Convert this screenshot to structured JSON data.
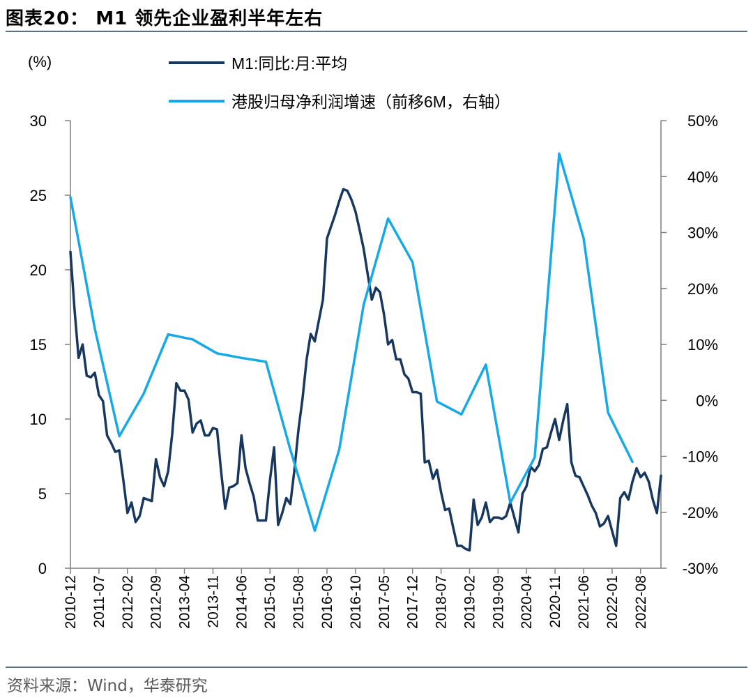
{
  "title": "图表20： M1 领先企业盈利半年左右",
  "source": "资料来源：Wind，华泰研究",
  "chart_data": {
    "type": "line",
    "left_axis_unit_label": "(%)",
    "left_axis": {
      "min": 0,
      "max": 30,
      "ticks": [
        0,
        5,
        10,
        15,
        20,
        25,
        30
      ]
    },
    "right_axis": {
      "min": -30,
      "max": 50,
      "ticks": [
        -30,
        -20,
        -10,
        0,
        10,
        20,
        30,
        40,
        50
      ],
      "tick_suffix": "%"
    },
    "x_axis": {
      "start": "2010-12",
      "end": "2022-12",
      "tick_labels": [
        "2010-12",
        "2011-07",
        "2012-02",
        "2012-09",
        "2013-04",
        "2013-11",
        "2014-06",
        "2015-01",
        "2015-08",
        "2016-03",
        "2016-10",
        "2017-05",
        "2017-12",
        "2018-07",
        "2019-02",
        "2019-09",
        "2020-04",
        "2020-11",
        "2021-06",
        "2022-01",
        "2022-08"
      ]
    },
    "legend_position": "top",
    "series": [
      {
        "name": "M1:同比:月:平均",
        "axis": "left",
        "color": "#17375e",
        "points": [
          [
            "2010-12",
            21.2
          ],
          [
            "2011-01",
            17.4
          ],
          [
            "2011-02",
            14.1
          ],
          [
            "2011-03",
            15.0
          ],
          [
            "2011-04",
            12.9
          ],
          [
            "2011-05",
            12.8
          ],
          [
            "2011-06",
            13.1
          ],
          [
            "2011-07",
            11.6
          ],
          [
            "2011-08",
            11.2
          ],
          [
            "2011-09",
            8.9
          ],
          [
            "2011-10",
            8.4
          ],
          [
            "2011-11",
            7.8
          ],
          [
            "2011-12",
            7.9
          ],
          [
            "2012-01",
            5.9
          ],
          [
            "2012-02",
            3.7
          ],
          [
            "2012-03",
            4.4
          ],
          [
            "2012-04",
            3.1
          ],
          [
            "2012-05",
            3.5
          ],
          [
            "2012-06",
            4.7
          ],
          [
            "2012-07",
            4.6
          ],
          [
            "2012-08",
            4.5
          ],
          [
            "2012-09",
            7.3
          ],
          [
            "2012-10",
            6.1
          ],
          [
            "2012-11",
            5.5
          ],
          [
            "2012-12",
            6.5
          ],
          [
            "2013-01",
            9.0
          ],
          [
            "2013-02",
            12.4
          ],
          [
            "2013-03",
            11.9
          ],
          [
            "2013-04",
            11.9
          ],
          [
            "2013-05",
            11.3
          ],
          [
            "2013-06",
            9.1
          ],
          [
            "2013-07",
            9.7
          ],
          [
            "2013-08",
            9.9
          ],
          [
            "2013-09",
            8.9
          ],
          [
            "2013-10",
            8.9
          ],
          [
            "2013-11",
            9.4
          ],
          [
            "2013-12",
            9.3
          ],
          [
            "2014-01",
            6.5
          ],
          [
            "2014-02",
            4.0
          ],
          [
            "2014-03",
            5.4
          ],
          [
            "2014-04",
            5.5
          ],
          [
            "2014-05",
            5.7
          ],
          [
            "2014-06",
            8.9
          ],
          [
            "2014-07",
            6.7
          ],
          [
            "2014-08",
            5.7
          ],
          [
            "2014-09",
            4.8
          ],
          [
            "2014-10",
            3.2
          ],
          [
            "2014-11",
            3.2
          ],
          [
            "2014-12",
            3.2
          ],
          [
            "2015-01",
            5.9
          ],
          [
            "2015-02",
            8.1
          ],
          [
            "2015-03",
            2.9
          ],
          [
            "2015-04",
            3.7
          ],
          [
            "2015-05",
            4.7
          ],
          [
            "2015-06",
            4.3
          ],
          [
            "2015-07",
            6.6
          ],
          [
            "2015-08",
            9.3
          ],
          [
            "2015-09",
            11.4
          ],
          [
            "2015-10",
            14.0
          ],
          [
            "2015-11",
            15.7
          ],
          [
            "2015-12",
            15.2
          ],
          [
            "2016-01",
            16.6
          ],
          [
            "2016-02",
            18.0
          ],
          [
            "2016-03",
            22.1
          ],
          [
            "2016-04",
            22.9
          ],
          [
            "2016-05",
            23.7
          ],
          [
            "2016-06",
            24.6
          ],
          [
            "2016-07",
            25.4
          ],
          [
            "2016-08",
            25.3
          ],
          [
            "2016-09",
            24.7
          ],
          [
            "2016-10",
            23.9
          ],
          [
            "2016-11",
            22.7
          ],
          [
            "2016-12",
            21.4
          ],
          [
            "2017-01",
            19.7
          ],
          [
            "2017-02",
            18.0
          ],
          [
            "2017-03",
            18.8
          ],
          [
            "2017-04",
            18.5
          ],
          [
            "2017-05",
            17.0
          ],
          [
            "2017-06",
            15.0
          ],
          [
            "2017-07",
            15.3
          ],
          [
            "2017-08",
            14.0
          ],
          [
            "2017-09",
            14.0
          ],
          [
            "2017-10",
            13.0
          ],
          [
            "2017-11",
            12.7
          ],
          [
            "2017-12",
            11.8
          ],
          [
            "2018-01",
            11.8
          ],
          [
            "2018-02",
            11.7
          ],
          [
            "2018-03",
            7.1
          ],
          [
            "2018-04",
            7.2
          ],
          [
            "2018-05",
            6.0
          ],
          [
            "2018-06",
            6.6
          ],
          [
            "2018-07",
            5.1
          ],
          [
            "2018-08",
            3.9
          ],
          [
            "2018-09",
            4.0
          ],
          [
            "2018-10",
            2.7
          ],
          [
            "2018-11",
            1.5
          ],
          [
            "2018-12",
            1.5
          ],
          [
            "2019-01",
            1.3
          ],
          [
            "2019-02",
            1.2
          ],
          [
            "2019-03",
            4.6
          ],
          [
            "2019-04",
            2.9
          ],
          [
            "2019-05",
            3.4
          ],
          [
            "2019-06",
            4.4
          ],
          [
            "2019-07",
            3.1
          ],
          [
            "2019-08",
            3.4
          ],
          [
            "2019-09",
            3.4
          ],
          [
            "2019-10",
            3.3
          ],
          [
            "2019-11",
            3.5
          ],
          [
            "2019-12",
            4.4
          ],
          [
            "2020-01",
            3.4
          ],
          [
            "2020-02",
            2.4
          ],
          [
            "2020-03",
            5.0
          ],
          [
            "2020-04",
            5.5
          ],
          [
            "2020-05",
            6.8
          ],
          [
            "2020-06",
            6.5
          ],
          [
            "2020-07",
            6.9
          ],
          [
            "2020-08",
            8.0
          ],
          [
            "2020-09",
            8.1
          ],
          [
            "2020-10",
            9.1
          ],
          [
            "2020-11",
            10.0
          ],
          [
            "2020-12",
            8.6
          ],
          [
            "2021-01",
            9.9
          ],
          [
            "2021-02",
            11.0
          ],
          [
            "2021-03",
            7.1
          ],
          [
            "2021-04",
            6.2
          ],
          [
            "2021-05",
            6.1
          ],
          [
            "2021-06",
            5.5
          ],
          [
            "2021-07",
            4.9
          ],
          [
            "2021-08",
            4.2
          ],
          [
            "2021-09",
            3.7
          ],
          [
            "2021-10",
            2.8
          ],
          [
            "2021-11",
            3.0
          ],
          [
            "2021-12",
            3.5
          ],
          [
            "2022-01",
            2.5
          ],
          [
            "2022-02",
            1.5
          ],
          [
            "2022-03",
            4.7
          ],
          [
            "2022-04",
            5.1
          ],
          [
            "2022-05",
            4.6
          ],
          [
            "2022-06",
            5.8
          ],
          [
            "2022-07",
            6.7
          ],
          [
            "2022-08",
            6.1
          ],
          [
            "2022-09",
            6.4
          ],
          [
            "2022-10",
            5.8
          ],
          [
            "2022-11",
            4.6
          ],
          [
            "2022-12",
            3.7
          ],
          [
            "2023-01",
            6.2
          ]
        ]
      },
      {
        "name": "港股归母净利润增速（前移6M，右轴）",
        "axis": "right",
        "color": "#16a9e6",
        "points": [
          [
            "2010-12",
            36.3
          ],
          [
            "2011-06",
            12.8
          ],
          [
            "2011-12",
            -6.4
          ],
          [
            "2012-06",
            1.2
          ],
          [
            "2012-12",
            11.8
          ],
          [
            "2013-06",
            10.9
          ],
          [
            "2013-12",
            8.4
          ],
          [
            "2014-06",
            7.6
          ],
          [
            "2014-12",
            6.9
          ],
          [
            "2015-06",
            -8.8
          ],
          [
            "2015-12",
            -23.3
          ],
          [
            "2016-06",
            -8.8
          ],
          [
            "2016-12",
            17.1
          ],
          [
            "2017-06",
            32.5
          ],
          [
            "2017-12",
            24.7
          ],
          [
            "2018-06",
            -0.2
          ],
          [
            "2018-12",
            -2.5
          ],
          [
            "2019-06",
            6.4
          ],
          [
            "2019-12",
            -18.3
          ],
          [
            "2020-06",
            -10.2
          ],
          [
            "2020-12",
            44.1
          ],
          [
            "2021-06",
            29.0
          ],
          [
            "2021-12",
            -2.2
          ],
          [
            "2022-06",
            -11.0
          ]
        ]
      }
    ]
  }
}
